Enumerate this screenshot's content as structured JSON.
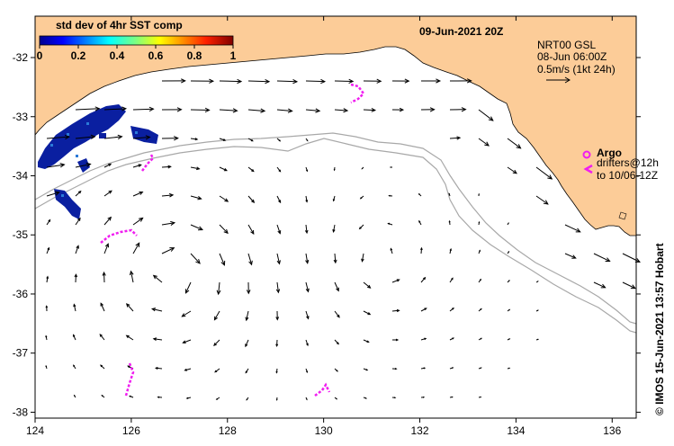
{
  "title": "09-Jun-2021 20Z",
  "colorbar": {
    "title": "std dev of 4hr SST comp",
    "ticks": [
      "0",
      "0.2",
      "0.4",
      "0.6",
      "0.8",
      "1"
    ],
    "range": [
      0,
      1
    ]
  },
  "info": {
    "product": "NRT00 GSL",
    "date": "08-Jun 06:00Z",
    "scale": "0.5m/s (1kt 24h)"
  },
  "legend": {
    "argo_label": "Argo",
    "drifters_line1": "drifters@12h",
    "drifters_line2": "to 10/06-12Z"
  },
  "credit": "© IMOS 15-Jun-2021 13:57 Hobart",
  "axes": {
    "lon_range": [
      124,
      136.5
    ],
    "lat_range": [
      -38.1,
      -31.3
    ],
    "x_ticks": [
      "124",
      "126",
      "128",
      "130",
      "132",
      "134",
      "136"
    ],
    "y_ticks": [
      "-32",
      "-33",
      "-34",
      "-35",
      "-36",
      "-37",
      "-38"
    ]
  },
  "colors": {
    "land": "#fccc98",
    "sst_high": "#0a1fa0",
    "drifter": "#f01ef0",
    "shelf": "#a8a8a8"
  }
}
